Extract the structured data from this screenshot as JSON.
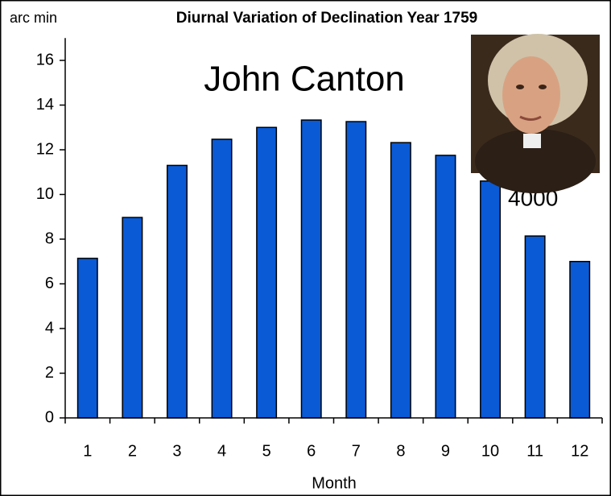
{
  "chart_data": {
    "type": "bar",
    "title": "Diurnal Variation of Declination Year 1759",
    "y_label": "arc min",
    "x_label": "Month",
    "annotations": [
      "John Canton",
      "4000"
    ],
    "categories": [
      "1",
      "2",
      "3",
      "4",
      "5",
      "6",
      "7",
      "8",
      "9",
      "10",
      "11",
      "12"
    ],
    "values": [
      7.14,
      8.97,
      11.3,
      12.47,
      13.0,
      13.33,
      13.26,
      12.32,
      11.75,
      10.6,
      8.14,
      7.0
    ],
    "color": "#0a5ad6",
    "ylim": [
      0,
      17
    ],
    "yticks": [
      0,
      2,
      4,
      6,
      8,
      10,
      12,
      14,
      16
    ],
    "grid": false
  }
}
